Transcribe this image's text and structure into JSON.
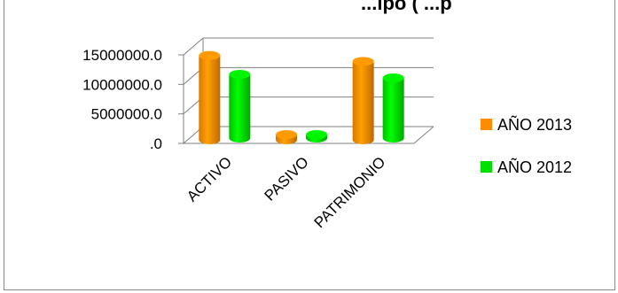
{
  "chart_data": {
    "type": "bar",
    "title": "...ipo ( ...p",
    "categories": [
      "ACTIVO",
      "PASIVO",
      "PATRIMONIO"
    ],
    "series": [
      {
        "name": "AÑO 2013",
        "color": "#ff8c00",
        "values": [
          14300000,
          900000,
          13300000
        ]
      },
      {
        "name": "AÑO 2012",
        "color": "#00e000",
        "values": [
          10800000,
          600000,
          10200000
        ]
      }
    ],
    "yticks": [
      "15000000.0",
      "10000000.0",
      "5000000.0",
      ".0"
    ],
    "ylim": [
      0,
      15000000
    ],
    "grid": true,
    "legend": "right",
    "xlabel": "",
    "ylabel": ""
  }
}
